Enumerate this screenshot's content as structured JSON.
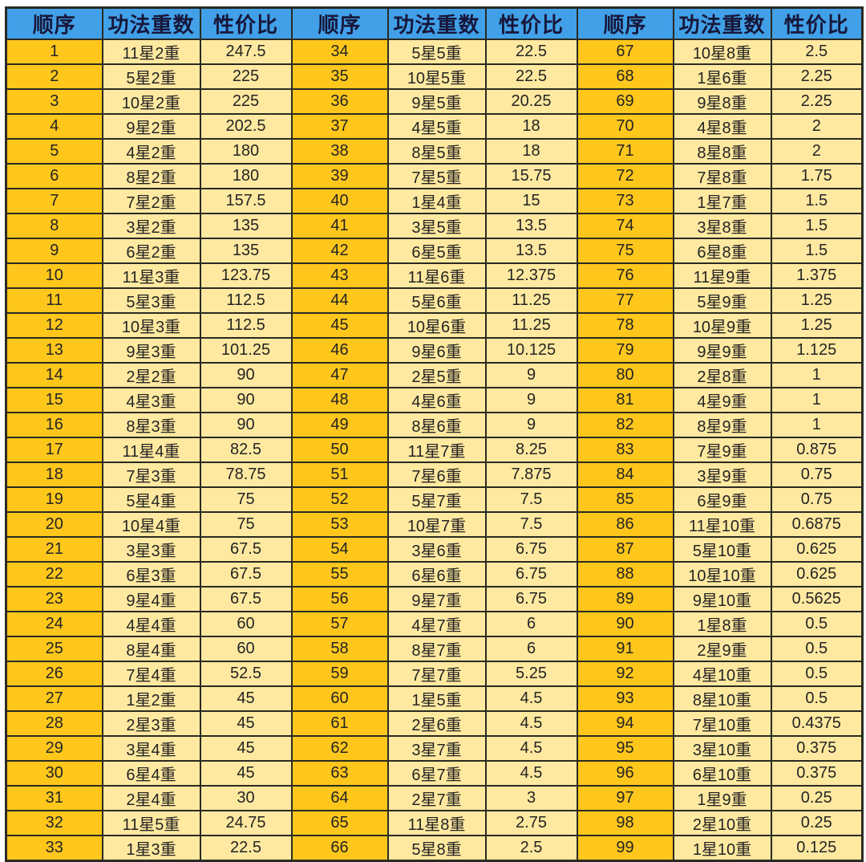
{
  "colors": {
    "header_bg": "#41a0e8",
    "header_text": "#17173a",
    "order_column_bg": "#ffc71c",
    "value_column_bg": "#ffe9a0",
    "grid_border": "#2a2a22",
    "cell_text": "#242424",
    "page_bg": "#ffffff"
  },
  "layout": {
    "group_count": 3,
    "rows_per_group": 33
  },
  "chart_data": {
    "type": "table",
    "columns": [
      "顺序",
      "功法重数",
      "性价比"
    ],
    "rows": [
      [
        1,
        "11星2重",
        247.5
      ],
      [
        2,
        "5星2重",
        225
      ],
      [
        3,
        "10星2重",
        225
      ],
      [
        4,
        "9星2重",
        202.5
      ],
      [
        5,
        "4星2重",
        180
      ],
      [
        6,
        "8星2重",
        180
      ],
      [
        7,
        "7星2重",
        157.5
      ],
      [
        8,
        "3星2重",
        135
      ],
      [
        9,
        "6星2重",
        135
      ],
      [
        10,
        "11星3重",
        123.75
      ],
      [
        11,
        "5星3重",
        112.5
      ],
      [
        12,
        "10星3重",
        112.5
      ],
      [
        13,
        "9星3重",
        101.25
      ],
      [
        14,
        "2星2重",
        90
      ],
      [
        15,
        "4星3重",
        90
      ],
      [
        16,
        "8星3重",
        90
      ],
      [
        17,
        "11星4重",
        82.5
      ],
      [
        18,
        "7星3重",
        78.75
      ],
      [
        19,
        "5星4重",
        75
      ],
      [
        20,
        "10星4重",
        75
      ],
      [
        21,
        "3星3重",
        67.5
      ],
      [
        22,
        "6星3重",
        67.5
      ],
      [
        23,
        "9星4重",
        67.5
      ],
      [
        24,
        "4星4重",
        60
      ],
      [
        25,
        "8星4重",
        60
      ],
      [
        26,
        "7星4重",
        52.5
      ],
      [
        27,
        "1星2重",
        45
      ],
      [
        28,
        "2星3重",
        45
      ],
      [
        29,
        "3星4重",
        45
      ],
      [
        30,
        "6星4重",
        45
      ],
      [
        31,
        "2星4重",
        30
      ],
      [
        32,
        "11星5重",
        24.75
      ],
      [
        33,
        "1星3重",
        22.5
      ],
      [
        34,
        "5星5重",
        22.5
      ],
      [
        35,
        "10星5重",
        22.5
      ],
      [
        36,
        "9星5重",
        20.25
      ],
      [
        37,
        "4星5重",
        18
      ],
      [
        38,
        "8星5重",
        18
      ],
      [
        39,
        "7星5重",
        15.75
      ],
      [
        40,
        "1星4重",
        15
      ],
      [
        41,
        "3星5重",
        13.5
      ],
      [
        42,
        "6星5重",
        13.5
      ],
      [
        43,
        "11星6重",
        12.375
      ],
      [
        44,
        "5星6重",
        11.25
      ],
      [
        45,
        "10星6重",
        11.25
      ],
      [
        46,
        "9星6重",
        10.125
      ],
      [
        47,
        "2星5重",
        9
      ],
      [
        48,
        "4星6重",
        9
      ],
      [
        49,
        "8星6重",
        9
      ],
      [
        50,
        "11星7重",
        8.25
      ],
      [
        51,
        "7星6重",
        7.875
      ],
      [
        52,
        "5星7重",
        7.5
      ],
      [
        53,
        "10星7重",
        7.5
      ],
      [
        54,
        "3星6重",
        6.75
      ],
      [
        55,
        "6星6重",
        6.75
      ],
      [
        56,
        "9星7重",
        6.75
      ],
      [
        57,
        "4星7重",
        6
      ],
      [
        58,
        "8星7重",
        6
      ],
      [
        59,
        "7星7重",
        5.25
      ],
      [
        60,
        "1星5重",
        4.5
      ],
      [
        61,
        "2星6重",
        4.5
      ],
      [
        62,
        "3星7重",
        4.5
      ],
      [
        63,
        "6星7重",
        4.5
      ],
      [
        64,
        "2星7重",
        3
      ],
      [
        65,
        "11星8重",
        2.75
      ],
      [
        66,
        "5星8重",
        2.5
      ],
      [
        67,
        "10星8重",
        2.5
      ],
      [
        68,
        "1星6重",
        2.25
      ],
      [
        69,
        "9星8重",
        2.25
      ],
      [
        70,
        "4星8重",
        2
      ],
      [
        71,
        "8星8重",
        2
      ],
      [
        72,
        "7星8重",
        1.75
      ],
      [
        73,
        "1星7重",
        1.5
      ],
      [
        74,
        "3星8重",
        1.5
      ],
      [
        75,
        "6星8重",
        1.5
      ],
      [
        76,
        "11星9重",
        1.375
      ],
      [
        77,
        "5星9重",
        1.25
      ],
      [
        78,
        "10星9重",
        1.25
      ],
      [
        79,
        "9星9重",
        1.125
      ],
      [
        80,
        "2星8重",
        1
      ],
      [
        81,
        "4星9重",
        1
      ],
      [
        82,
        "8星9重",
        1
      ],
      [
        83,
        "7星9重",
        0.875
      ],
      [
        84,
        "3星9重",
        0.75
      ],
      [
        85,
        "6星9重",
        0.75
      ],
      [
        86,
        "11星10重",
        0.6875
      ],
      [
        87,
        "5星10重",
        0.625
      ],
      [
        88,
        "10星10重",
        0.625
      ],
      [
        89,
        "9星10重",
        0.5625
      ],
      [
        90,
        "1星8重",
        0.5
      ],
      [
        91,
        "2星9重",
        0.5
      ],
      [
        92,
        "4星10重",
        0.5
      ],
      [
        93,
        "8星10重",
        0.5
      ],
      [
        94,
        "7星10重",
        0.4375
      ],
      [
        95,
        "3星10重",
        0.375
      ],
      [
        96,
        "6星10重",
        0.375
      ],
      [
        97,
        "1星9重",
        0.25
      ],
      [
        98,
        "2星10重",
        0.25
      ],
      [
        99,
        "1星10重",
        0.125
      ]
    ]
  }
}
